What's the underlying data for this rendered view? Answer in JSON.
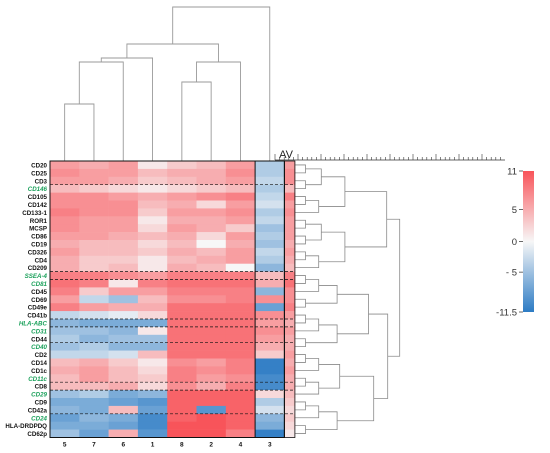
{
  "chart_data": {
    "type": "heatmap",
    "title": "",
    "average_label": "AV",
    "columns": [
      "5",
      "7",
      "6",
      "1",
      "8",
      "2",
      "4",
      "3"
    ],
    "rows": [
      {
        "label": "CD20",
        "highlight": false
      },
      {
        "label": "CD25",
        "highlight": false
      },
      {
        "label": "CD3",
        "highlight": false
      },
      {
        "label": "CD146",
        "highlight": true
      },
      {
        "label": "CD105",
        "highlight": false
      },
      {
        "label": "CD142",
        "highlight": false
      },
      {
        "label": "CD133-1",
        "highlight": false
      },
      {
        "label": "ROR1",
        "highlight": false
      },
      {
        "label": "MCSP",
        "highlight": false
      },
      {
        "label": "CD86",
        "highlight": false
      },
      {
        "label": "CD19",
        "highlight": false
      },
      {
        "label": "CD326",
        "highlight": false
      },
      {
        "label": "CD4",
        "highlight": false
      },
      {
        "label": "CD209",
        "highlight": false
      },
      {
        "label": "SSEA-4",
        "highlight": true
      },
      {
        "label": "CD81",
        "highlight": true
      },
      {
        "label": "CD45",
        "highlight": false
      },
      {
        "label": "CD69",
        "highlight": false
      },
      {
        "label": "CD49e",
        "highlight": false
      },
      {
        "label": "CD41b",
        "highlight": false
      },
      {
        "label": "HLA-ABC",
        "highlight": true
      },
      {
        "label": "CD31",
        "highlight": true
      },
      {
        "label": "CD44",
        "highlight": false
      },
      {
        "label": "CD40",
        "highlight": true
      },
      {
        "label": "CD2",
        "highlight": false
      },
      {
        "label": "CD14",
        "highlight": false
      },
      {
        "label": "CD1c",
        "highlight": false
      },
      {
        "label": "CD11c",
        "highlight": true
      },
      {
        "label": "CD8",
        "highlight": false
      },
      {
        "label": "CD29",
        "highlight": true
      },
      {
        "label": "CD9",
        "highlight": false
      },
      {
        "label": "CD42a",
        "highlight": false
      },
      {
        "label": "CD24",
        "highlight": true
      },
      {
        "label": "HLA-DRDPDQ",
        "highlight": false
      },
      {
        "label": "CD62p",
        "highlight": false
      }
    ],
    "values": [
      [
        6,
        5,
        6,
        1,
        3,
        4,
        6,
        -4,
        6
      ],
      [
        7,
        6,
        6,
        4,
        5,
        5,
        7,
        -4,
        7
      ],
      [
        6,
        6,
        5,
        3,
        4,
        5,
        6,
        -3,
        7
      ],
      [
        4,
        3,
        2,
        1,
        2,
        3,
        4,
        -4,
        4
      ],
      [
        7,
        7,
        6,
        5,
        6,
        7,
        8,
        -3,
        8
      ],
      [
        7,
        7,
        7,
        4,
        5,
        2,
        6,
        -2,
        6
      ],
      [
        8,
        7,
        7,
        3,
        6,
        6,
        7,
        -4,
        7
      ],
      [
        7,
        6,
        6,
        1,
        5,
        5,
        6,
        -3,
        6
      ],
      [
        7,
        6,
        6,
        2,
        6,
        5,
        3,
        -5,
        6
      ],
      [
        6,
        6,
        5,
        4,
        5,
        2,
        6,
        -4,
        6
      ],
      [
        5,
        4,
        4,
        2,
        4,
        0,
        5,
        -5,
        5
      ],
      [
        6,
        4,
        4,
        3,
        5,
        4,
        6,
        -3,
        6
      ],
      [
        5,
        3,
        3,
        1,
        4,
        5,
        6,
        -4,
        5
      ],
      [
        5,
        3,
        4,
        1,
        5,
        4,
        0,
        -6,
        4
      ],
      [
        8,
        8,
        7,
        6,
        8,
        8,
        8,
        4,
        8
      ],
      [
        9,
        8,
        1,
        8,
        9,
        9,
        9,
        5,
        9
      ],
      [
        8,
        3,
        6,
        6,
        8,
        8,
        8,
        -6,
        7
      ],
      [
        6,
        -3,
        -5,
        4,
        7,
        7,
        8,
        7,
        7
      ],
      [
        8,
        6,
        5,
        5,
        9,
        9,
        9,
        -8,
        8
      ],
      [
        -3,
        -2,
        -1,
        2,
        9,
        9,
        9,
        7,
        6
      ],
      [
        -6,
        -7,
        -7,
        -7,
        9,
        9,
        9,
        6,
        5
      ],
      [
        -5,
        -5,
        -6,
        1,
        9,
        9,
        9,
        7,
        6
      ],
      [
        -4,
        -6,
        -5,
        -5,
        9,
        9,
        9,
        6,
        5
      ],
      [
        -5,
        -4,
        -6,
        -6,
        9,
        9,
        9,
        5,
        5
      ],
      [
        -3,
        -3,
        -2,
        4,
        9,
        9,
        9,
        3,
        6
      ],
      [
        4,
        5,
        3,
        1,
        7,
        6,
        8,
        -11,
        5
      ],
      [
        5,
        6,
        4,
        2,
        8,
        7,
        8,
        -11,
        6
      ],
      [
        4,
        6,
        4,
        3,
        8,
        6,
        7,
        -10,
        5
      ],
      [
        4,
        4,
        5,
        2,
        7,
        5,
        8,
        -10,
        5
      ],
      [
        -5,
        -4,
        -7,
        -6,
        10,
        10,
        10,
        2,
        4
      ],
      [
        -7,
        -7,
        -8,
        -9,
        10,
        10,
        10,
        -4,
        3
      ],
      [
        -6,
        -7,
        4,
        -8,
        10,
        -9,
        10,
        -2,
        2
      ],
      [
        -8,
        -6,
        -7,
        -10,
        10,
        11,
        10,
        -6,
        3
      ],
      [
        -7,
        -7,
        -8,
        -10,
        11,
        11,
        10,
        -7,
        2
      ],
      [
        -5,
        -8,
        5,
        -9,
        11,
        11,
        8,
        -11,
        1
      ]
    ],
    "row_group_separators_after": [
      3,
      14,
      15,
      20,
      21,
      23,
      28,
      29,
      32
    ],
    "color_scale": {
      "min": -11.5,
      "max": 11,
      "ticks": [
        "11",
        "5",
        "0",
        "- 5",
        "-11.5"
      ],
      "tick_values": [
        11,
        5,
        0,
        -5,
        -11.5
      ],
      "colors": {
        "low": "#2c7bc4",
        "mid": "#f7f7f7",
        "high": "#f8545a"
      }
    },
    "highlight_color": "#1aa05a"
  }
}
